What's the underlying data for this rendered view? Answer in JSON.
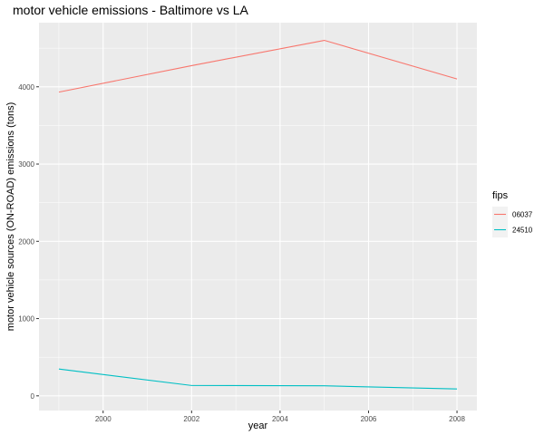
{
  "chart_data": {
    "type": "line",
    "title": "motor vehicle emissions - Baltimore vs LA",
    "xlabel": "year",
    "ylabel": "motor vehicle sources (ON-ROAD) emissions (tons)",
    "x": [
      1999,
      2002,
      2005,
      2008
    ],
    "xlim": [
      1998.55,
      2008.45
    ],
    "ylim": [
      -190,
      4830
    ],
    "xticks": [
      2000,
      2002,
      2004,
      2006,
      2008
    ],
    "yticks": [
      0,
      1000,
      2000,
      3000,
      4000
    ],
    "grid": true,
    "legend_position": "right",
    "legend_title": "fips",
    "series": [
      {
        "name": "06037",
        "color": "#F8766D",
        "values": [
          3931,
          4274,
          4601,
          4101
        ]
      },
      {
        "name": "24510",
        "color": "#00BFC4",
        "values": [
          347,
          134,
          130,
          89
        ]
      }
    ]
  }
}
